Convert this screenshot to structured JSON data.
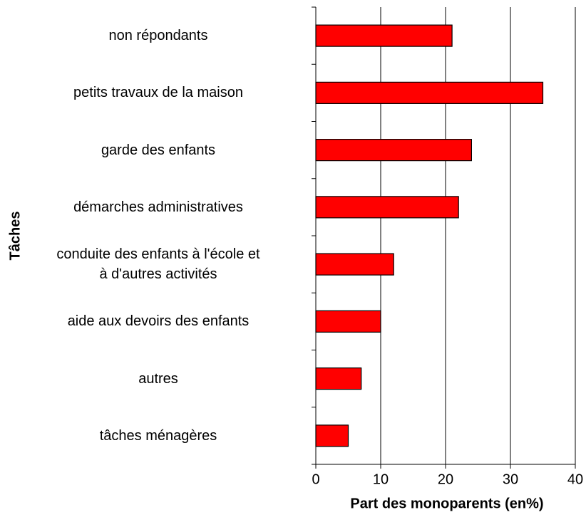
{
  "chart_data": {
    "type": "bar",
    "orientation": "horizontal",
    "x_label": "Part des monoparents (en%)",
    "y_label": "Tâches",
    "categories": [
      "non répondants",
      "petits travaux de la maison",
      "garde des enfants",
      "démarches administratives",
      "conduite des enfants à l'école et\nà d'autres activités",
      "aide aux devoirs des enfants",
      "autres",
      "tâches ménagères"
    ],
    "values": [
      21,
      35,
      24,
      22,
      12,
      10,
      7,
      5
    ],
    "color": "#ff0000",
    "xlim": [
      0,
      40
    ],
    "xticks": [
      0,
      10,
      20,
      30,
      40
    ],
    "grid": true
  }
}
